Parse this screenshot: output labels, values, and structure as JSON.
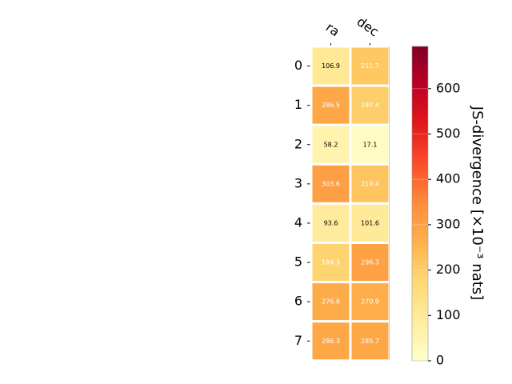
{
  "chart_data": {
    "type": "heatmap",
    "title": "",
    "columns": [
      "ra",
      "dec"
    ],
    "rows": [
      "0",
      "1",
      "2",
      "3",
      "4",
      "5",
      "6",
      "7"
    ],
    "values": [
      [
        106.9,
        211.7
      ],
      [
        286.5,
        197.4
      ],
      [
        58.2,
        17.1
      ],
      [
        303.6,
        219.4
      ],
      [
        93.6,
        101.6
      ],
      [
        184.3,
        296.3
      ],
      [
        276.8,
        270.9
      ],
      [
        286.3,
        285.7
      ]
    ],
    "cell_labels": [
      [
        "106.9",
        "211.7"
      ],
      [
        "286.5",
        "197.4"
      ],
      [
        "58.2",
        "17.1"
      ],
      [
        "303.6",
        "219.4"
      ],
      [
        "93.6",
        "101.6"
      ],
      [
        "184.3",
        "296.3"
      ],
      [
        "276.8",
        "270.9"
      ],
      [
        "286.3",
        "285.7"
      ]
    ],
    "colormap": "YlOrRd",
    "colorbar": {
      "label": "JS-divergence [×10⁻³ nats]",
      "range": [
        0,
        693.1
      ],
      "ticks": [
        0,
        100,
        200,
        300,
        400,
        500,
        600
      ],
      "tick_labels": [
        "0",
        "100",
        "200",
        "300",
        "400",
        "500",
        "600"
      ]
    },
    "grid": false,
    "legend": "colorbar-right"
  }
}
